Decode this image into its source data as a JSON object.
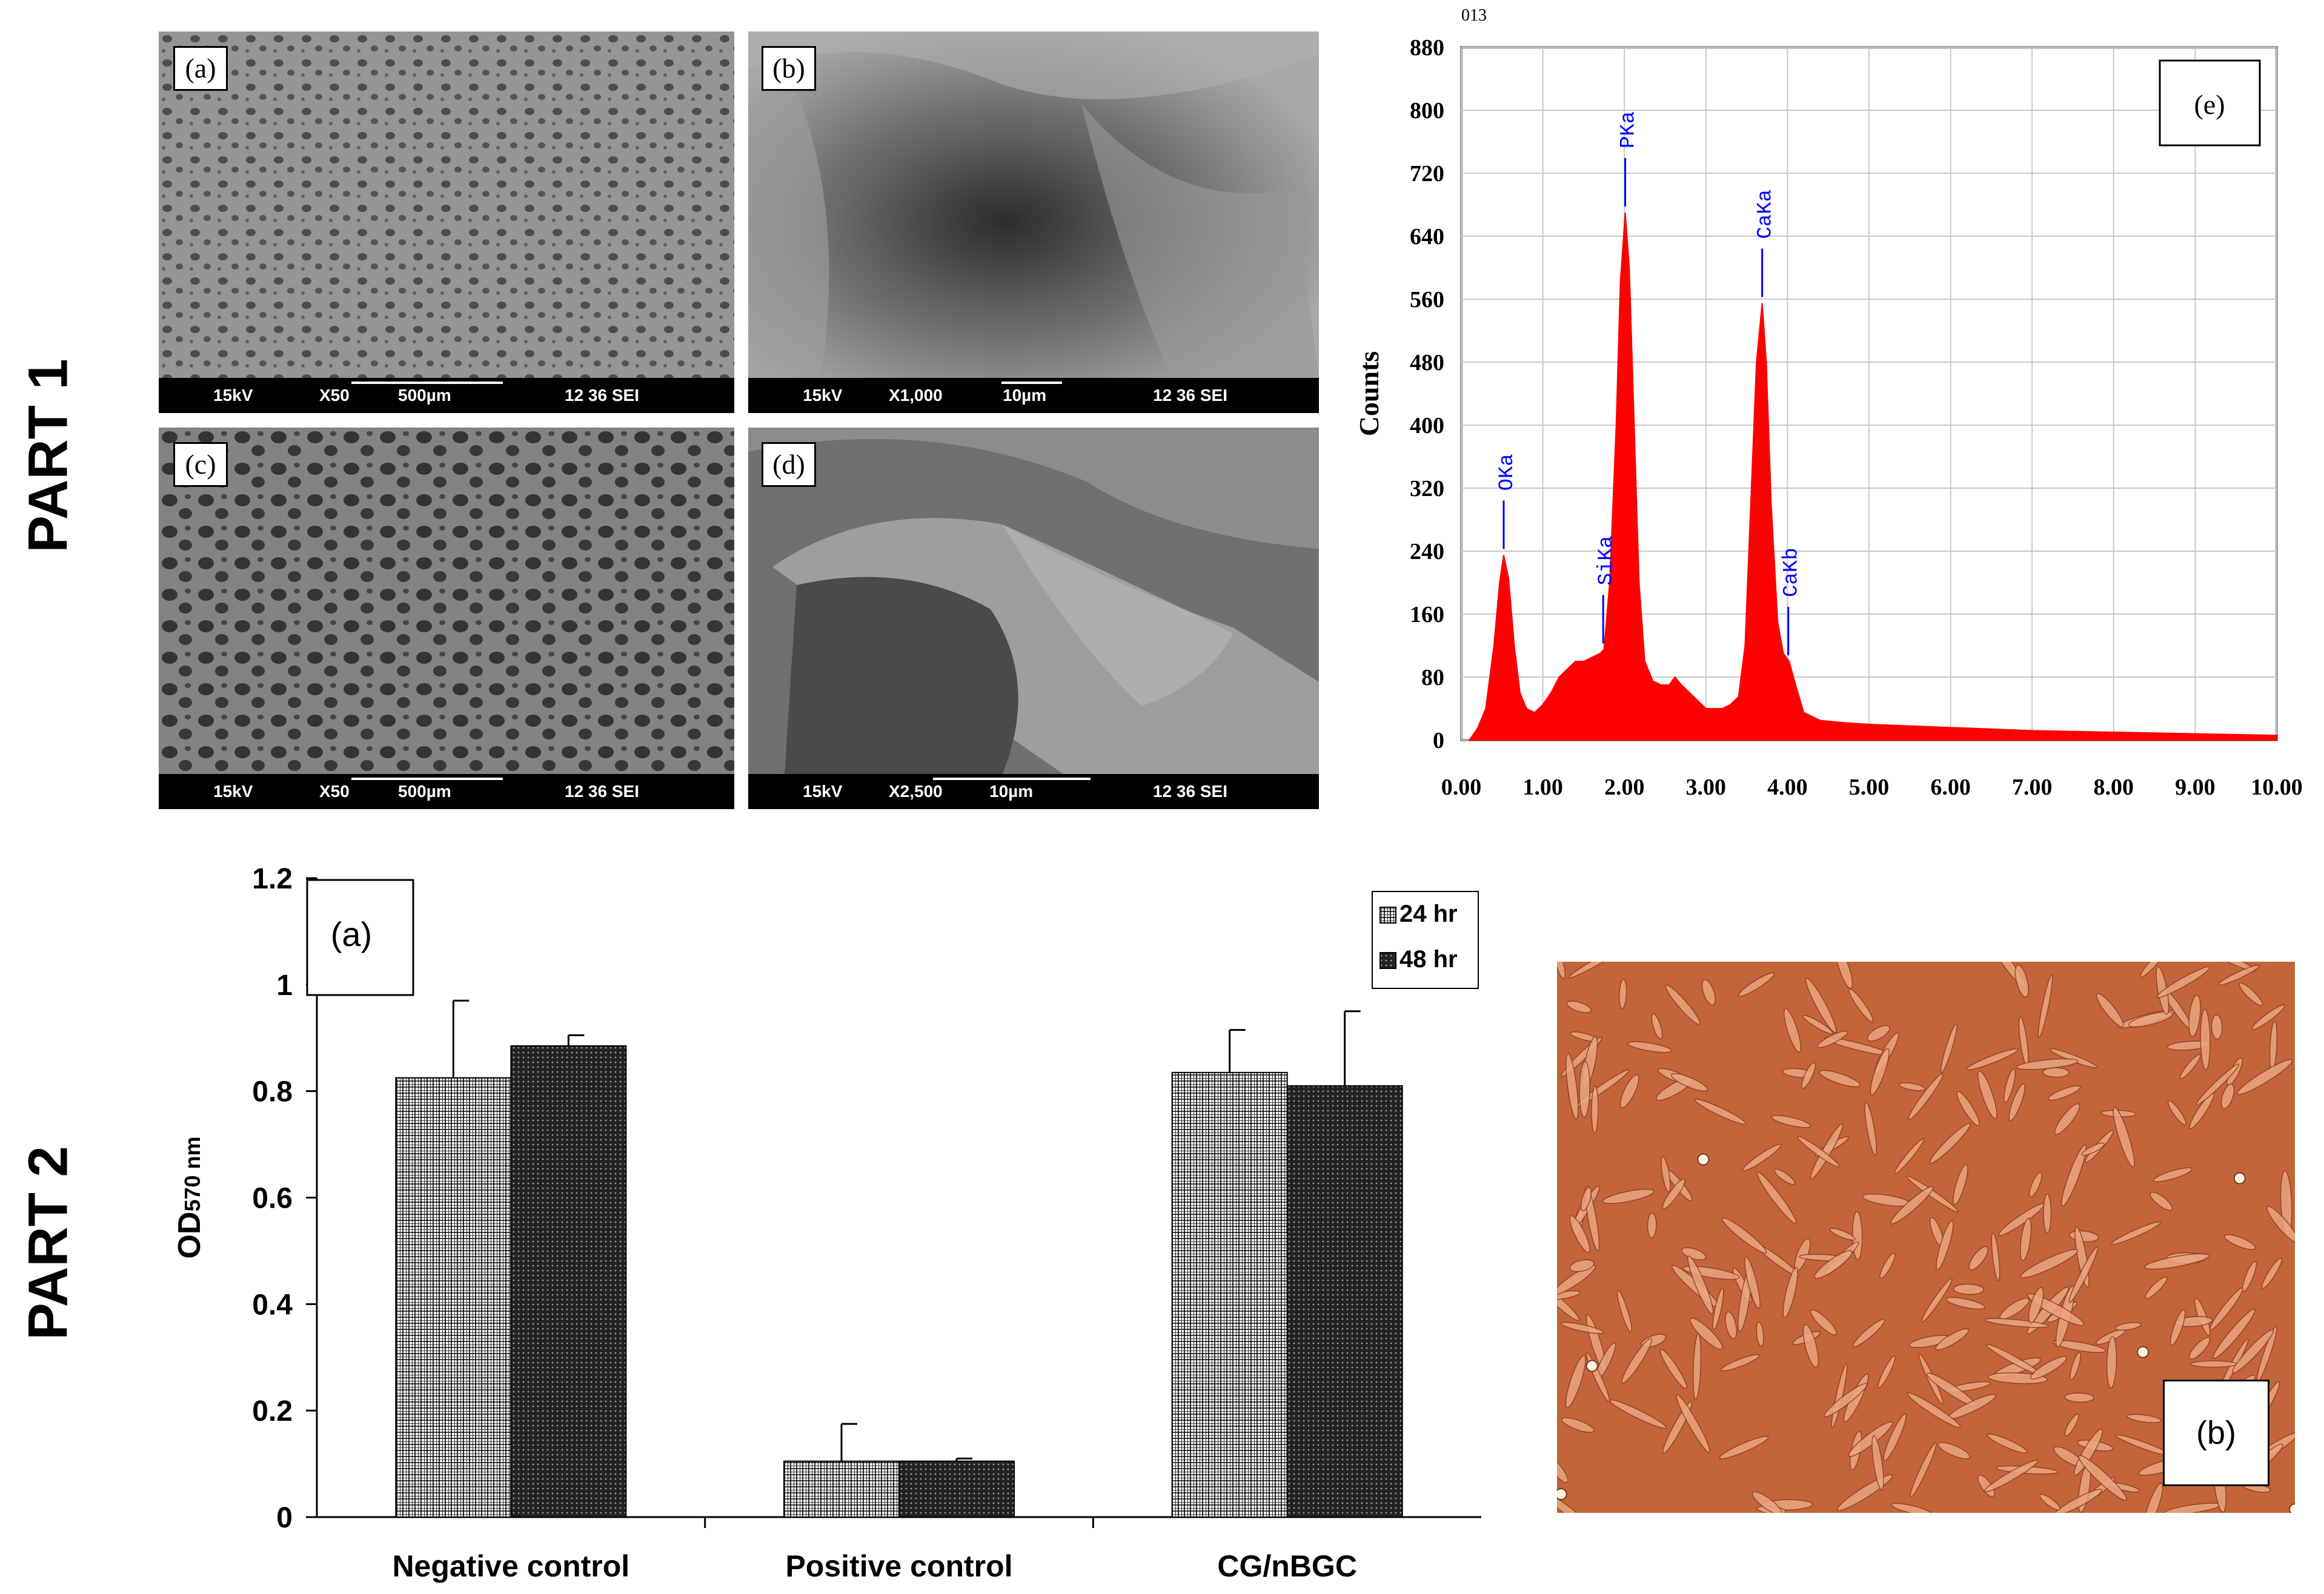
{
  "part_labels": {
    "part1": "PART 1",
    "part2": "PART 2"
  },
  "sem_panels": [
    {
      "tag": "(a)",
      "kv": "15kV",
      "mag": "X50",
      "scale": "500µm",
      "info": "12 36 SEI"
    },
    {
      "tag": "(b)",
      "kv": "15kV",
      "mag": "X1,000",
      "scale": "10µm",
      "info": "12 36 SEI"
    },
    {
      "tag": "(c)",
      "kv": "15kV",
      "mag": "X50",
      "scale": "500µm",
      "info": "12 36 SEI"
    },
    {
      "tag": "(d)",
      "kv": "15kV",
      "mag": "X2,500",
      "scale": "10µm",
      "info": "12 36 SEI"
    }
  ],
  "chart_data": [
    {
      "type": "area",
      "tag": "(e)",
      "corner_text": "013",
      "ylabel": "Counts",
      "xlim": [
        0,
        10
      ],
      "ylim": [
        0,
        880
      ],
      "x_ticks": [
        "0.00",
        "1.00",
        "2.00",
        "3.00",
        "4.00",
        "5.00",
        "6.00",
        "7.00",
        "8.00",
        "9.00",
        "10.00"
      ],
      "y_ticks": [
        "0",
        "80",
        "160",
        "240",
        "320",
        "400",
        "480",
        "560",
        "640",
        "720",
        "800",
        "880"
      ],
      "color": "#ff0000",
      "peaks": [
        {
          "label": "OKa",
          "x": 0.52,
          "y": 235
        },
        {
          "label": "SiKa",
          "x": 1.74,
          "y": 115
        },
        {
          "label": "PKa",
          "x": 2.01,
          "y": 670
        },
        {
          "label": "CaKa",
          "x": 3.69,
          "y": 555
        },
        {
          "label": "CaKb",
          "x": 4.01,
          "y": 100
        }
      ],
      "spectrum": [
        [
          0.1,
          0
        ],
        [
          0.2,
          15
        ],
        [
          0.3,
          40
        ],
        [
          0.4,
          120
        ],
        [
          0.47,
          200
        ],
        [
          0.52,
          235
        ],
        [
          0.58,
          205
        ],
        [
          0.65,
          120
        ],
        [
          0.72,
          60
        ],
        [
          0.8,
          40
        ],
        [
          0.9,
          35
        ],
        [
          1.0,
          45
        ],
        [
          1.1,
          60
        ],
        [
          1.2,
          80
        ],
        [
          1.3,
          90
        ],
        [
          1.4,
          100
        ],
        [
          1.5,
          100
        ],
        [
          1.6,
          105
        ],
        [
          1.7,
          110
        ],
        [
          1.75,
          115
        ],
        [
          1.82,
          200
        ],
        [
          1.9,
          400
        ],
        [
          1.95,
          580
        ],
        [
          2.01,
          670
        ],
        [
          2.06,
          600
        ],
        [
          2.12,
          400
        ],
        [
          2.18,
          200
        ],
        [
          2.25,
          100
        ],
        [
          2.35,
          75
        ],
        [
          2.45,
          70
        ],
        [
          2.55,
          70
        ],
        [
          2.62,
          80
        ],
        [
          2.7,
          70
        ],
        [
          2.8,
          60
        ],
        [
          2.9,
          50
        ],
        [
          3.0,
          40
        ],
        [
          3.1,
          40
        ],
        [
          3.2,
          40
        ],
        [
          3.3,
          45
        ],
        [
          3.4,
          55
        ],
        [
          3.48,
          120
        ],
        [
          3.55,
          300
        ],
        [
          3.62,
          480
        ],
        [
          3.69,
          555
        ],
        [
          3.74,
          480
        ],
        [
          3.8,
          300
        ],
        [
          3.88,
          150
        ],
        [
          3.95,
          110
        ],
        [
          4.02,
          100
        ],
        [
          4.1,
          70
        ],
        [
          4.2,
          35
        ],
        [
          4.4,
          25
        ],
        [
          4.7,
          22
        ],
        [
          5.0,
          20
        ],
        [
          5.5,
          18
        ],
        [
          6.0,
          16
        ],
        [
          6.5,
          14
        ],
        [
          7.0,
          12
        ],
        [
          7.5,
          11
        ],
        [
          8.0,
          10
        ],
        [
          8.5,
          9
        ],
        [
          9.0,
          8
        ],
        [
          9.5,
          7
        ],
        [
          10.0,
          6
        ]
      ]
    },
    {
      "type": "bar",
      "tag": "(a)",
      "ylabel": "OD",
      "ylabel_sub": "570 nm",
      "ylim": [
        0,
        1.2
      ],
      "y_ticks": [
        "0",
        "0.2",
        "0.4",
        "0.6",
        "0.8",
        "1",
        "1.2"
      ],
      "categories": [
        "Negative control",
        "Positive control",
        "CG/nBGC"
      ],
      "series": [
        {
          "name": "24 hr",
          "values": [
            0.825,
            0.105,
            0.835
          ],
          "errors": [
            0.145,
            0.07,
            0.08
          ]
        },
        {
          "name": "48 hr",
          "values": [
            0.885,
            0.105,
            0.81
          ],
          "errors": [
            0.02,
            0.005,
            0.14
          ]
        }
      ]
    }
  ],
  "micro_panel": {
    "tag": "(b)"
  }
}
